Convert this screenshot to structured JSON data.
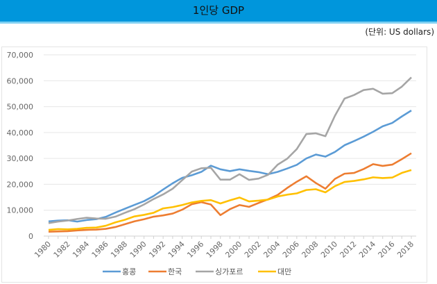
{
  "header": {
    "title": "1인당 GDP"
  },
  "unit_note": "(단위: US dollars)",
  "chart_data": {
    "type": "line",
    "title": "1인당 GDP",
    "ylim": [
      0,
      70000
    ],
    "yticks": [
      "0",
      "10,000",
      "20,000",
      "30,000",
      "40,000",
      "50,000",
      "60,000",
      "70,000"
    ],
    "grid": true,
    "legend_position": "bottom",
    "x": [
      1980,
      1981,
      1982,
      1983,
      1984,
      1985,
      1986,
      1987,
      1988,
      1989,
      1990,
      1991,
      1992,
      1993,
      1994,
      1995,
      1996,
      1997,
      1998,
      1999,
      2000,
      2001,
      2002,
      2003,
      2004,
      2005,
      2006,
      2007,
      2008,
      2009,
      2010,
      2011,
      2012,
      2013,
      2014,
      2015,
      2016,
      2017,
      2018
    ],
    "xtick_labels": [
      "1980",
      "1982",
      "1984",
      "1986",
      "1988",
      "1990",
      "1992",
      "1994",
      "1996",
      "1998",
      "2000",
      "2002",
      "2004",
      "2006",
      "2008",
      "2010",
      "2012",
      "2014",
      "2016",
      "2018"
    ],
    "series": [
      {
        "name": "홍콩",
        "color": "#5b9bd5",
        "values": [
          5700,
          5990,
          6130,
          5600,
          6210,
          6540,
          7440,
          9070,
          10580,
          12050,
          13490,
          15470,
          17980,
          20400,
          22500,
          23500,
          24800,
          27200,
          25800,
          25100,
          25800,
          25200,
          24700,
          23900,
          24800,
          26100,
          27500,
          30000,
          31500,
          30700,
          32500,
          35100,
          36700,
          38400,
          40300,
          42400,
          43700,
          46200,
          48500
        ]
      },
      {
        "name": "한국",
        "color": "#ed7d31",
        "values": [
          1700,
          1800,
          1900,
          2200,
          2400,
          2500,
          2800,
          3500,
          4600,
          5700,
          6500,
          7500,
          8000,
          8700,
          10200,
          12300,
          13100,
          12200,
          8100,
          10400,
          12000,
          11300,
          12800,
          14200,
          15900,
          18600,
          21000,
          23100,
          20500,
          18300,
          22100,
          24100,
          24400,
          25900,
          27800,
          27100,
          27600,
          29700,
          32000
        ]
      },
      {
        "name": "싱가포르",
        "color": "#a5a5a5",
        "values": [
          5000,
          5600,
          6000,
          6600,
          7100,
          6800,
          6700,
          7500,
          9000,
          10400,
          12200,
          14300,
          16100,
          18300,
          21600,
          24900,
          26200,
          26400,
          21800,
          21800,
          23900,
          21700,
          22200,
          23700,
          27600,
          29900,
          33600,
          39400,
          39700,
          38600,
          46500,
          53100,
          54500,
          56400,
          56900,
          55000,
          55200,
          57700,
          61300
        ]
      },
      {
        "name": "대만",
        "color": "#ffc000",
        "values": [
          2400,
          2700,
          2600,
          2800,
          3200,
          3300,
          4000,
          5300,
          6300,
          7600,
          8200,
          9000,
          10700,
          11200,
          12000,
          13000,
          13600,
          13900,
          12600,
          13800,
          14900,
          13400,
          13700,
          14100,
          15300,
          16000,
          16500,
          17800,
          18100,
          16900,
          19300,
          20900,
          21300,
          21900,
          22700,
          22400,
          22600,
          24400,
          25500
        ]
      }
    ]
  }
}
